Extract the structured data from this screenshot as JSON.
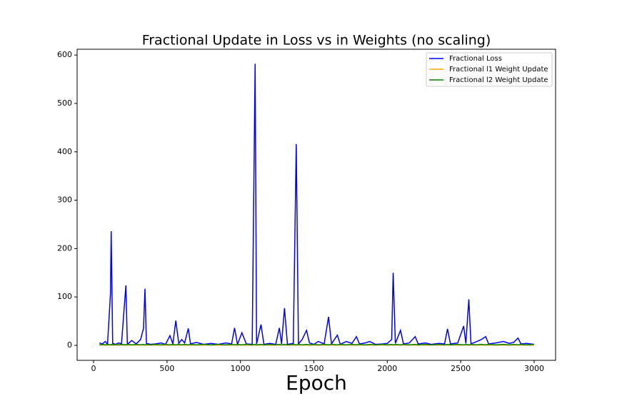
{
  "chart_data": {
    "type": "line",
    "title": "Fractional Update in Loss vs in Weights (no scaling)",
    "xlabel": "Epoch",
    "x": [
      40,
      60,
      80,
      95,
      115,
      120,
      130,
      150,
      170,
      190,
      220,
      230,
      260,
      290,
      320,
      340,
      350,
      360,
      390,
      420,
      460,
      490,
      520,
      540,
      560,
      580,
      600,
      620,
      645,
      660,
      700,
      750,
      800,
      850,
      900,
      940,
      960,
      980,
      1010,
      1040,
      1080,
      1100,
      1110,
      1140,
      1160,
      1200,
      1240,
      1265,
      1280,
      1300,
      1320,
      1360,
      1380,
      1395,
      1420,
      1450,
      1470,
      1500,
      1530,
      1570,
      1600,
      1620,
      1660,
      1680,
      1720,
      1760,
      1790,
      1810,
      1850,
      1880,
      1920,
      1970,
      2000,
      2030,
      2040,
      2055,
      2090,
      2110,
      2150,
      2190,
      2210,
      2260,
      2300,
      2350,
      2390,
      2410,
      2430,
      2480,
      2520,
      2535,
      2555,
      2570,
      2610,
      2640,
      2670,
      2690,
      2740,
      2790,
      2830,
      2860,
      2890,
      2910,
      2950,
      3000
    ],
    "series": [
      {
        "name": "Fractional Loss",
        "color": "#0000ff",
        "values": [
          5,
          3,
          8,
          2,
          107,
          236,
          4,
          2,
          5,
          3,
          124,
          2,
          10,
          3,
          12,
          35,
          117,
          4,
          2,
          3,
          5,
          2,
          20,
          3,
          51,
          4,
          12,
          5,
          35,
          3,
          6,
          2,
          4,
          2,
          5,
          3,
          36,
          2,
          26,
          3,
          2,
          582,
          3,
          43,
          2,
          4,
          2,
          36,
          3,
          77,
          2,
          4,
          416,
          3,
          12,
          31,
          5,
          2,
          8,
          3,
          59,
          3,
          21,
          2,
          8,
          4,
          18,
          3,
          5,
          8,
          2,
          3,
          4,
          12,
          150,
          4,
          31,
          3,
          5,
          18,
          3,
          5,
          2,
          4,
          3,
          34,
          3,
          5,
          40,
          4,
          95,
          3,
          8,
          12,
          18,
          3,
          5,
          8,
          4,
          6,
          15,
          3,
          4,
          2
        ]
      },
      {
        "name": "Fractional l1 Weight Update",
        "color": "#ffa500",
        "values": [
          0.5,
          0.5,
          0.5,
          0.5,
          0.5,
          0.5,
          0.5,
          0.5,
          0.5,
          0.5,
          0.5,
          0.5,
          0.5,
          0.5,
          0.5,
          0.5,
          0.5,
          0.5,
          0.5,
          0.5,
          0.5,
          0.5,
          0.5,
          0.5,
          0.5,
          0.5,
          0.5,
          0.5,
          0.5,
          0.5,
          0.5,
          0.5,
          0.5,
          0.5,
          0.5,
          0.5,
          0.5,
          0.5,
          0.5,
          0.5,
          0.5,
          0.5,
          0.5,
          0.5,
          0.5,
          0.5,
          0.5,
          0.5,
          0.5,
          0.5,
          0.5,
          0.5,
          0.5,
          0.5,
          0.5,
          0.5,
          0.5,
          0.5,
          0.5,
          0.5,
          0.5,
          0.5,
          0.5,
          0.5,
          0.5,
          0.5,
          0.5,
          0.5,
          0.5,
          0.5,
          0.5,
          0.5,
          0.5,
          0.5,
          0.5,
          0.5,
          0.5,
          0.5,
          0.5,
          0.5,
          0.5,
          0.5,
          0.5,
          0.5,
          0.5,
          0.5,
          0.5,
          0.5,
          0.5,
          0.5,
          0.5,
          0.5,
          0.5,
          0.5,
          0.5,
          0.5,
          0.5,
          0.5,
          0.5,
          0.5,
          0.5,
          0.5,
          0.5,
          0.5
        ]
      },
      {
        "name": "Fractional l2 Weight Update",
        "color": "#008000",
        "values": [
          1,
          2,
          1,
          2,
          1,
          2,
          1,
          2,
          1,
          2,
          1,
          2,
          1,
          2,
          1,
          2,
          1,
          2,
          1,
          2,
          1,
          2,
          1,
          2,
          1,
          2,
          1,
          2,
          1,
          2,
          1,
          2,
          1,
          2,
          1,
          2,
          1,
          2,
          1,
          2,
          1,
          2,
          1,
          2,
          1,
          2,
          1,
          2,
          1,
          2,
          1,
          2,
          1,
          2,
          1,
          2,
          1,
          2,
          1,
          2,
          1,
          2,
          1,
          2,
          1,
          2,
          1,
          2,
          1,
          2,
          1,
          2,
          1,
          2,
          1,
          2,
          1,
          2,
          1,
          2,
          1,
          2,
          1,
          2,
          1,
          2,
          1,
          2,
          1,
          2,
          1,
          2,
          1,
          2,
          1,
          2,
          1,
          2,
          1,
          2,
          1,
          2,
          1,
          2
        ]
      }
    ],
    "xlim": [
      -112,
      3146
    ],
    "ylim": [
      -31,
      612
    ],
    "xticks": [
      0,
      500,
      1000,
      1500,
      2000,
      2500,
      3000
    ],
    "yticks": [
      0,
      100,
      200,
      300,
      400,
      500,
      600
    ],
    "legend": "upper right"
  }
}
